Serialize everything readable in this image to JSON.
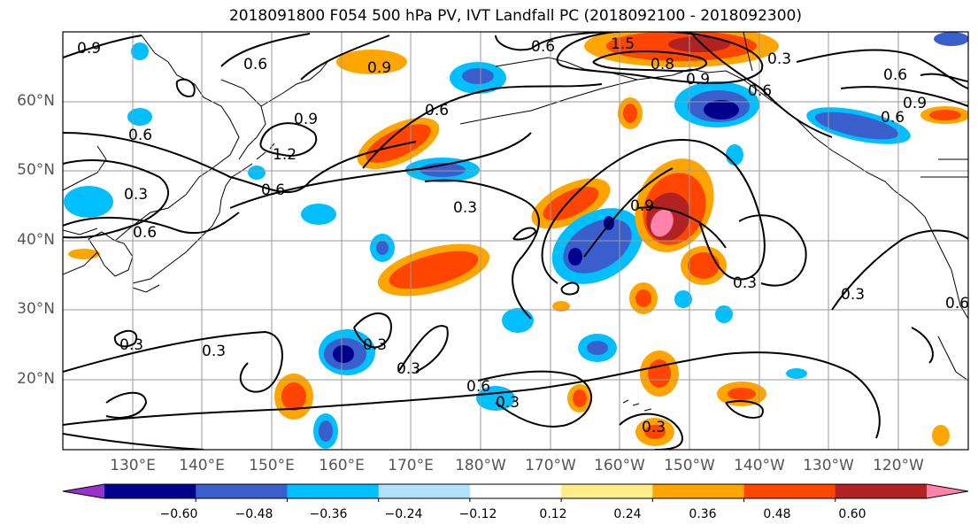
{
  "title": "2018091800 F054 500 hPa PV, IVT Landfall PC (2018092100 - 2018092300)",
  "lat_labels": [
    "60°N",
    "50°N",
    "40°N",
    "30°N",
    "20°N"
  ],
  "lon_labels": [
    "130°E",
    "140°E",
    "150°E",
    "160°E",
    "170°E",
    "180°W",
    "170°W",
    "160°W",
    "150°W",
    "140°W",
    "130°W",
    "120°W"
  ],
  "colorbar": {
    "colors": [
      "#9932cc",
      "#00008b",
      "#3a5fcd",
      "#00bfff",
      "#b0e2ff",
      "#ffffff",
      "#ffec8b",
      "#ffa500",
      "#ff4500",
      "#b22222",
      "#ff82ab"
    ],
    "tick_labels": [
      "−0.60",
      "−0.48",
      "−0.36",
      "−0.24",
      "−0.12",
      "0.12",
      "0.24",
      "0.36",
      "0.48",
      "0.60"
    ]
  },
  "contour_labels": {
    "c1": "0.9",
    "c2": "0.6",
    "c3": "0.6",
    "c4": "0.9",
    "c5": "1.5",
    "c6": "0.8",
    "c7": "0.3",
    "c8": "0.6",
    "c9": "0.9",
    "c10": "0.6",
    "c11": "0.9",
    "c12": "0.6",
    "c13": "0.6",
    "c14": "0.9",
    "c15": "0.6",
    "c16": "1.2",
    "c17": "0.3",
    "c18": "0.6",
    "c19": "0.6",
    "c20": "0.3",
    "c21": "0.9",
    "c22": "0.3",
    "c23": "0.3",
    "c24": "0.3",
    "c25": "0.3",
    "c26": "0.3",
    "c27": "0.3",
    "c28": "0.6",
    "c29": "0.3",
    "c30": "0.3",
    "c31": "0.6"
  }
}
